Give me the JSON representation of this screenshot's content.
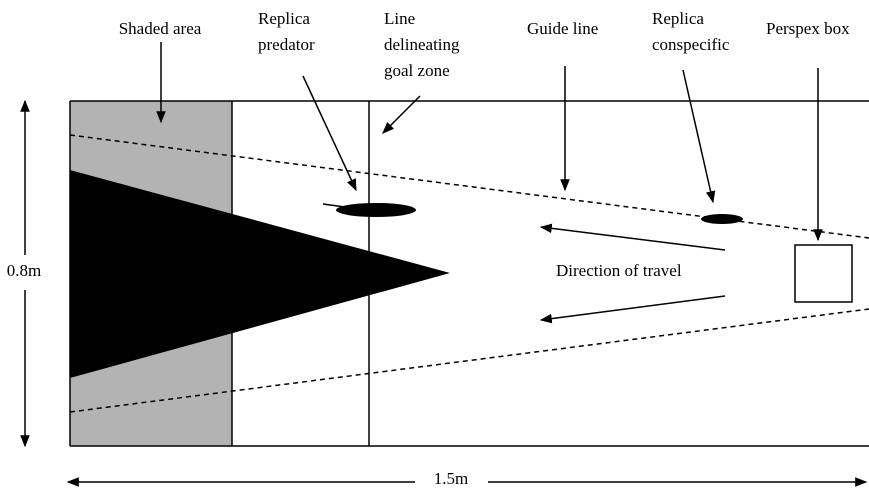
{
  "labels": {
    "shaded_area": [
      "Shaded area"
    ],
    "replica_predator": [
      "Replica",
      "predator"
    ],
    "goal_line": [
      "Line",
      "delineating",
      "goal zone"
    ],
    "guide_line": [
      "Guide line"
    ],
    "replica_conspecific": [
      "Replica",
      "conspecific"
    ],
    "perspex_box": [
      "Perspex box"
    ],
    "direction": [
      "Direction of travel"
    ]
  },
  "dimensions": {
    "height": "0.8m",
    "width": "1.5m"
  }
}
